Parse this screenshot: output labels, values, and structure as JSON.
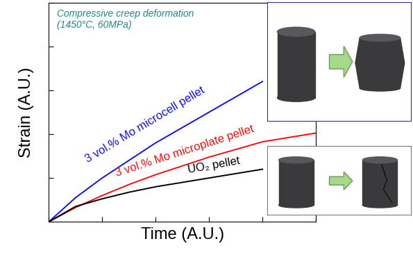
{
  "chart_data": {
    "type": "line",
    "x_label": "Time (A.U.)",
    "y_label": "Strain (A.U.)",
    "annotations": [
      "Compressive creep deformation\n(1450°C, 60MPa)"
    ],
    "x": [
      0,
      1,
      2,
      3,
      4,
      5,
      6,
      7,
      8,
      9,
      10
    ],
    "series": [
      {
        "name": "3 vol.% Mo microcell pellet",
        "color": "#1010ee",
        "values": [
          0,
          1.1,
          2.0,
          2.8,
          3.6,
          4.3,
          5.0,
          5.7,
          6.4,
          null,
          null
        ]
      },
      {
        "name": "3 vol.% Mo microplate pellet",
        "color": "#ee1010",
        "values": [
          0,
          0.65,
          1.2,
          1.7,
          2.15,
          2.55,
          2.95,
          3.3,
          3.65,
          3.85,
          4.05
        ]
      },
      {
        "name": "UO₂ pellet",
        "color": "#000000",
        "values": [
          0,
          0.7,
          1.05,
          1.35,
          1.6,
          1.8,
          2.0,
          2.2,
          2.4,
          null,
          null
        ]
      }
    ],
    "xlim": [
      0,
      10
    ],
    "ylim": [
      0,
      10
    ],
    "xticks": [
      0,
      2,
      4,
      6,
      8,
      10
    ],
    "yticks": [
      0,
      2,
      4,
      6,
      8,
      10
    ],
    "tick_labels": false,
    "grid": false
  }
}
